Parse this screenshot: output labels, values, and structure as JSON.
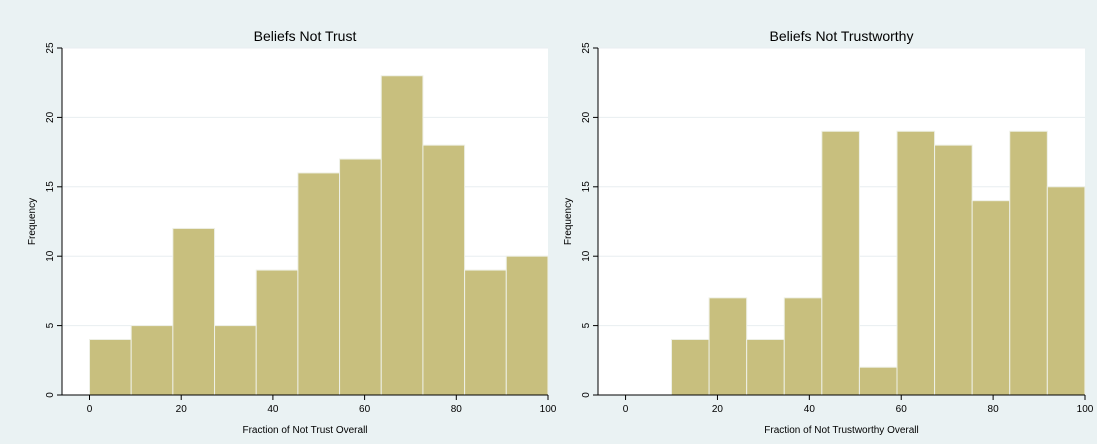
{
  "chart_data": [
    {
      "type": "bar",
      "title": "Beliefs Not Trust",
      "xlabel": "Fraction of Not Trust Overall",
      "ylabel": "Frequency",
      "xlim": [
        -6,
        100
      ],
      "ylim": [
        0,
        25
      ],
      "xticks": [
        "0",
        "20",
        "40",
        "60",
        "80",
        "100"
      ],
      "yticks": [
        "0",
        "5",
        "10",
        "15",
        "20",
        "25"
      ],
      "grid": true,
      "bin_start": 0,
      "bin_width": 9.09,
      "values": [
        4,
        5,
        12,
        5,
        9,
        16,
        17,
        23,
        18,
        9,
        10
      ],
      "bar_color": "#c8bf7e",
      "bar_edge_color": "#eef0e6"
    },
    {
      "type": "bar",
      "title": "Beliefs Not Trustworthy",
      "xlabel": "Fraction of Not Trustworthy Overall",
      "ylabel": "Frequency",
      "xlim": [
        -6,
        100
      ],
      "ylim": [
        0,
        25
      ],
      "xticks": [
        "0",
        "20",
        "40",
        "60",
        "80",
        "100"
      ],
      "yticks": [
        "0",
        "5",
        "10",
        "15",
        "20",
        "25"
      ],
      "grid": true,
      "bin_start": 10,
      "bin_width": 8.18,
      "values": [
        4,
        7,
        4,
        7,
        19,
        2,
        19,
        18,
        14,
        19,
        15
      ],
      "bar_color": "#c8bf7e",
      "bar_edge_color": "#eef0e6"
    }
  ],
  "colors": {
    "background": "#eaf2f3",
    "plot_area": "#ffffff",
    "grid": "#e8eef0"
  }
}
